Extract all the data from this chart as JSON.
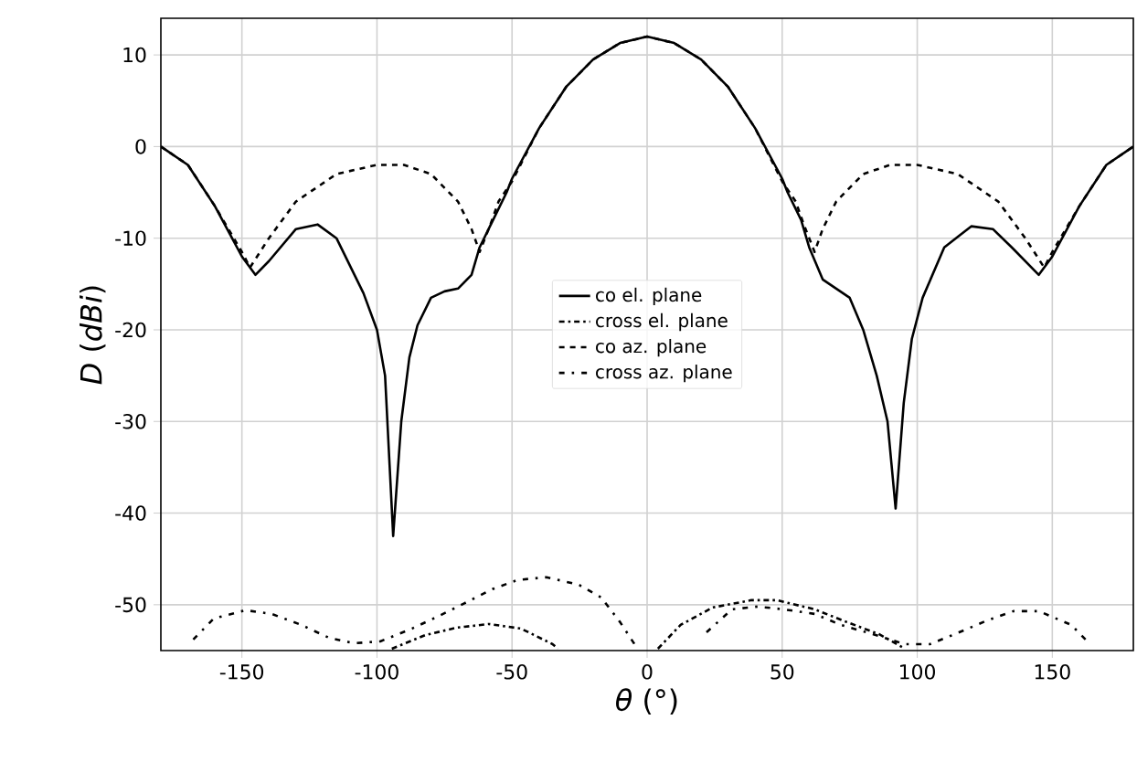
{
  "chart_data": {
    "type": "line",
    "xlabel": "*θ* (°)",
    "ylabel": "*D* (*dBi*)",
    "xlim": [
      -180,
      180
    ],
    "ylim": [
      -55,
      14
    ],
    "xticks": [
      -150,
      -100,
      -50,
      0,
      50,
      100,
      150
    ],
    "yticks": [
      -50,
      -40,
      -30,
      -20,
      -10,
      0,
      10
    ],
    "grid": true,
    "legend": "center",
    "marker": "none",
    "series": [
      {
        "name": "co el. plane",
        "color": "#000000",
        "line_style": "solid",
        "x": [
          -180,
          -170,
          -160,
          -150,
          -145,
          -140,
          -130,
          -122,
          -115,
          -105,
          -100,
          -97,
          -94,
          -91,
          -88,
          -85,
          -80,
          -75,
          -70,
          -65,
          -62,
          -57,
          -52,
          -50,
          -40,
          -30,
          -20,
          -10,
          0,
          10,
          20,
          30,
          40,
          50,
          52,
          57,
          60,
          65,
          70,
          75,
          80,
          85,
          89,
          92,
          95,
          98,
          102,
          110,
          120,
          128,
          135,
          145,
          150,
          160,
          170,
          180
        ],
        "values": [
          0,
          -2,
          -6.5,
          -12,
          -14,
          -12.5,
          -9,
          -8.5,
          -10,
          -16,
          -20,
          -25,
          -42.5,
          -30,
          -23,
          -19.5,
          -16.5,
          -15.8,
          -15.5,
          -14,
          -11,
          -8,
          -5,
          -3.5,
          2,
          6.5,
          9.5,
          11.3,
          12,
          11.3,
          9.5,
          6.5,
          2,
          -3.5,
          -5,
          -8,
          -11,
          -14.5,
          -15.5,
          -16.5,
          -20,
          -25,
          -30,
          -39.5,
          -28,
          -21,
          -16.5,
          -11,
          -8.7,
          -9,
          -11,
          -14,
          -12,
          -6.5,
          -2,
          0
        ]
      },
      {
        "name": "cross el. plane",
        "color": "#000000",
        "line_style": "dashdot",
        "x": [
          -94.5,
          -82,
          -70.4,
          -58.6,
          -46.7,
          -35,
          -33,
          null,
          4,
          12.4,
          24.3,
          38.6,
          48,
          62,
          74,
          85.8,
          95.5
        ],
        "values": [
          -54.8,
          -53.3,
          -52.5,
          -52.1,
          -52.6,
          -54.3,
          -54.8,
          null,
          -54.8,
          -52.2,
          -50.3,
          -49.5,
          -49.5,
          -50.5,
          -51.9,
          -53.2,
          -54.8
        ]
      },
      {
        "name": "co az. plane",
        "color": "#000000",
        "line_style": "dashed",
        "x": [
          -180,
          -170,
          -160,
          -150,
          -147,
          -140,
          -130,
          -115,
          -100,
          -90,
          -80,
          -70,
          -65,
          -62,
          -58,
          -55,
          -50,
          -40,
          -30,
          -20,
          -10,
          0,
          10,
          20,
          30,
          40,
          50,
          55,
          58,
          62,
          65,
          70,
          80,
          90,
          100,
          115,
          130,
          140,
          147,
          150,
          160,
          170,
          180
        ],
        "values": [
          0,
          -2,
          -6.5,
          -11.5,
          -13.2,
          -10,
          -6,
          -3,
          -2,
          -2,
          -3,
          -6,
          -9,
          -11.5,
          -8.5,
          -6,
          -3.8,
          2,
          6.5,
          9.5,
          11.3,
          12,
          11.3,
          9.5,
          6.5,
          2,
          -3.8,
          -6,
          -8.5,
          -11.5,
          -9,
          -6,
          -3,
          -2,
          -2,
          -3,
          -6,
          -10,
          -13.2,
          -11.5,
          -6.5,
          -2,
          0
        ]
      },
      {
        "name": "cross az. plane",
        "color": "#000000",
        "line_style": "loosely dashdotted",
        "x": [
          -168,
          -160.4,
          -148.7,
          -139,
          -128,
          -117.8,
          -108.5,
          -98.8,
          -87,
          -77.6,
          -68,
          -57.3,
          -48,
          -37.3,
          -25.4,
          -17,
          -10,
          -4,
          null,
          22,
          31.4,
          40.9,
          50.5,
          62,
          71.7,
          83.4,
          95.4,
          104.7,
          114,
          126,
          135.6,
          145,
          157,
          164
        ],
        "values": [
          -53.8,
          -51.5,
          -50.6,
          -51,
          -52.2,
          -53.6,
          -54.2,
          -54,
          -52.6,
          -51.3,
          -49.9,
          -48.3,
          -47.3,
          -47,
          -47.8,
          -49.2,
          -51.9,
          -54.6,
          null,
          -53,
          -50.5,
          -50.2,
          -50.5,
          -51,
          -52.2,
          -53.2,
          -54.3,
          -54.3,
          -53.2,
          -51.7,
          -50.7,
          -50.7,
          -52.2,
          -54.3
        ]
      }
    ]
  }
}
